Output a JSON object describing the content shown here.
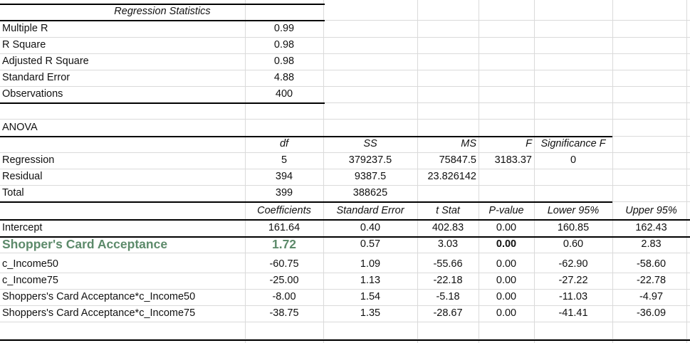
{
  "colors": {
    "highlight_text": "#5c8a6a",
    "grid_line": "#dadada",
    "rule_line": "#000000"
  },
  "regression_statistics": {
    "title": "Regression Statistics",
    "rows": [
      {
        "label": "Multiple R",
        "value": "0.99"
      },
      {
        "label": "R Square",
        "value": "0.98"
      },
      {
        "label": "Adjusted R Square",
        "value": "0.98"
      },
      {
        "label": "Standard Error",
        "value": "4.88"
      },
      {
        "label": "Observations",
        "value": "400"
      }
    ]
  },
  "anova": {
    "title": "ANOVA",
    "headers": [
      "",
      "df",
      "SS",
      "MS",
      "F",
      "Significance F"
    ],
    "rows": [
      [
        "Regression",
        "5",
        "379237.5",
        "75847.5",
        "3183.37",
        "0"
      ],
      [
        "Residual",
        "394",
        "9387.5",
        "23.826142",
        "",
        ""
      ],
      [
        "Total",
        "399",
        "388625",
        "",
        "",
        ""
      ]
    ]
  },
  "coefficients": {
    "headers": [
      "",
      "Coefficients",
      "Standard Error",
      "t Stat",
      "P-value",
      "Lower 95%",
      "Upper 95%"
    ],
    "rows": [
      [
        "Intercept",
        "161.64",
        "0.40",
        "402.83",
        "0.00",
        "160.85",
        "162.43"
      ],
      [
        "Shopper's Card Acceptance",
        "1.72",
        "0.57",
        "3.03",
        "0.00",
        "0.60",
        "2.83"
      ],
      [
        "c_Income50",
        "-60.75",
        "1.09",
        "-55.66",
        "0.00",
        "-62.90",
        "-58.60"
      ],
      [
        "c_Income75",
        "-25.00",
        "1.13",
        "-22.18",
        "0.00",
        "-27.22",
        "-22.78"
      ],
      [
        "Shoppers's Card Acceptance*c_Income50",
        "-8.00",
        "1.54",
        "-5.18",
        "0.00",
        "-11.03",
        "-4.97"
      ],
      [
        "Shoppers's Card Acceptance*c_Income75",
        "-38.75",
        "1.35",
        "-28.67",
        "0.00",
        "-41.41",
        "-36.09"
      ]
    ]
  }
}
